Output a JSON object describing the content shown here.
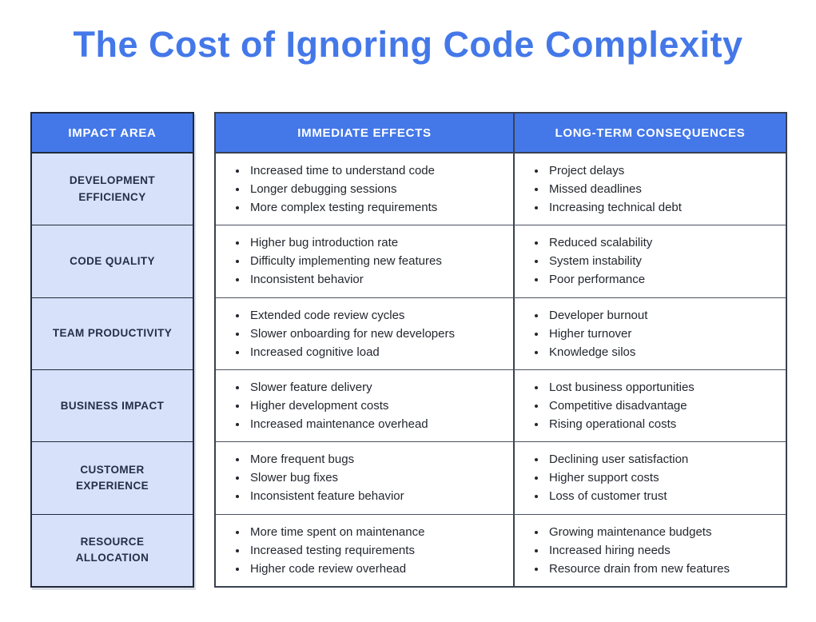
{
  "title": "The Cost of Ignoring Code Complexity",
  "colors": {
    "accent_blue": "#4478E9",
    "light_blue_cell": "#D7E1FA",
    "header_text": "#FFFFFF",
    "impact_label_text": "#233048",
    "body_text": "#23272E",
    "left_table_border": "#202A3C",
    "main_table_border": "#3A4150"
  },
  "table": {
    "headers": [
      "IMPACT AREA",
      "IMMEDIATE EFFECTS",
      "LONG-TERM CONSEQUENCES"
    ],
    "rows": [
      {
        "impact_area": "DEVELOPMENT EFFICIENCY",
        "immediate_effects": [
          "Increased time to understand code",
          "Longer debugging sessions",
          "More complex testing requirements"
        ],
        "long_term_consequences": [
          "Project delays",
          "Missed deadlines",
          "Increasing technical debt"
        ]
      },
      {
        "impact_area": "CODE QUALITY",
        "immediate_effects": [
          "Higher bug introduction rate",
          "Difficulty implementing new features",
          "Inconsistent behavior"
        ],
        "long_term_consequences": [
          "Reduced scalability",
          "System instability",
          "Poor performance"
        ]
      },
      {
        "impact_area": "TEAM PRODUCTIVITY",
        "immediate_effects": [
          "Extended code review cycles",
          "Slower onboarding for new developers",
          "Increased cognitive load"
        ],
        "long_term_consequences": [
          "Developer burnout",
          "Higher turnover",
          "Knowledge silos"
        ]
      },
      {
        "impact_area": "BUSINESS IMPACT",
        "immediate_effects": [
          "Slower feature delivery",
          "Higher development costs",
          "Increased maintenance overhead"
        ],
        "long_term_consequences": [
          "Lost business opportunities",
          "Competitive disadvantage",
          "Rising operational costs"
        ]
      },
      {
        "impact_area": "CUSTOMER EXPERIENCE",
        "immediate_effects": [
          "More frequent bugs",
          "Slower bug fixes",
          "Inconsistent feature behavior"
        ],
        "long_term_consequences": [
          "Declining user satisfaction",
          "Higher support costs",
          "Loss of customer trust"
        ]
      },
      {
        "impact_area": "RESOURCE ALLOCATION",
        "immediate_effects": [
          "More time spent on maintenance",
          "Increased testing requirements",
          "Higher code review overhead"
        ],
        "long_term_consequences": [
          "Growing maintenance budgets",
          "Increased hiring needs",
          "Resource drain from new features"
        ]
      }
    ]
  }
}
